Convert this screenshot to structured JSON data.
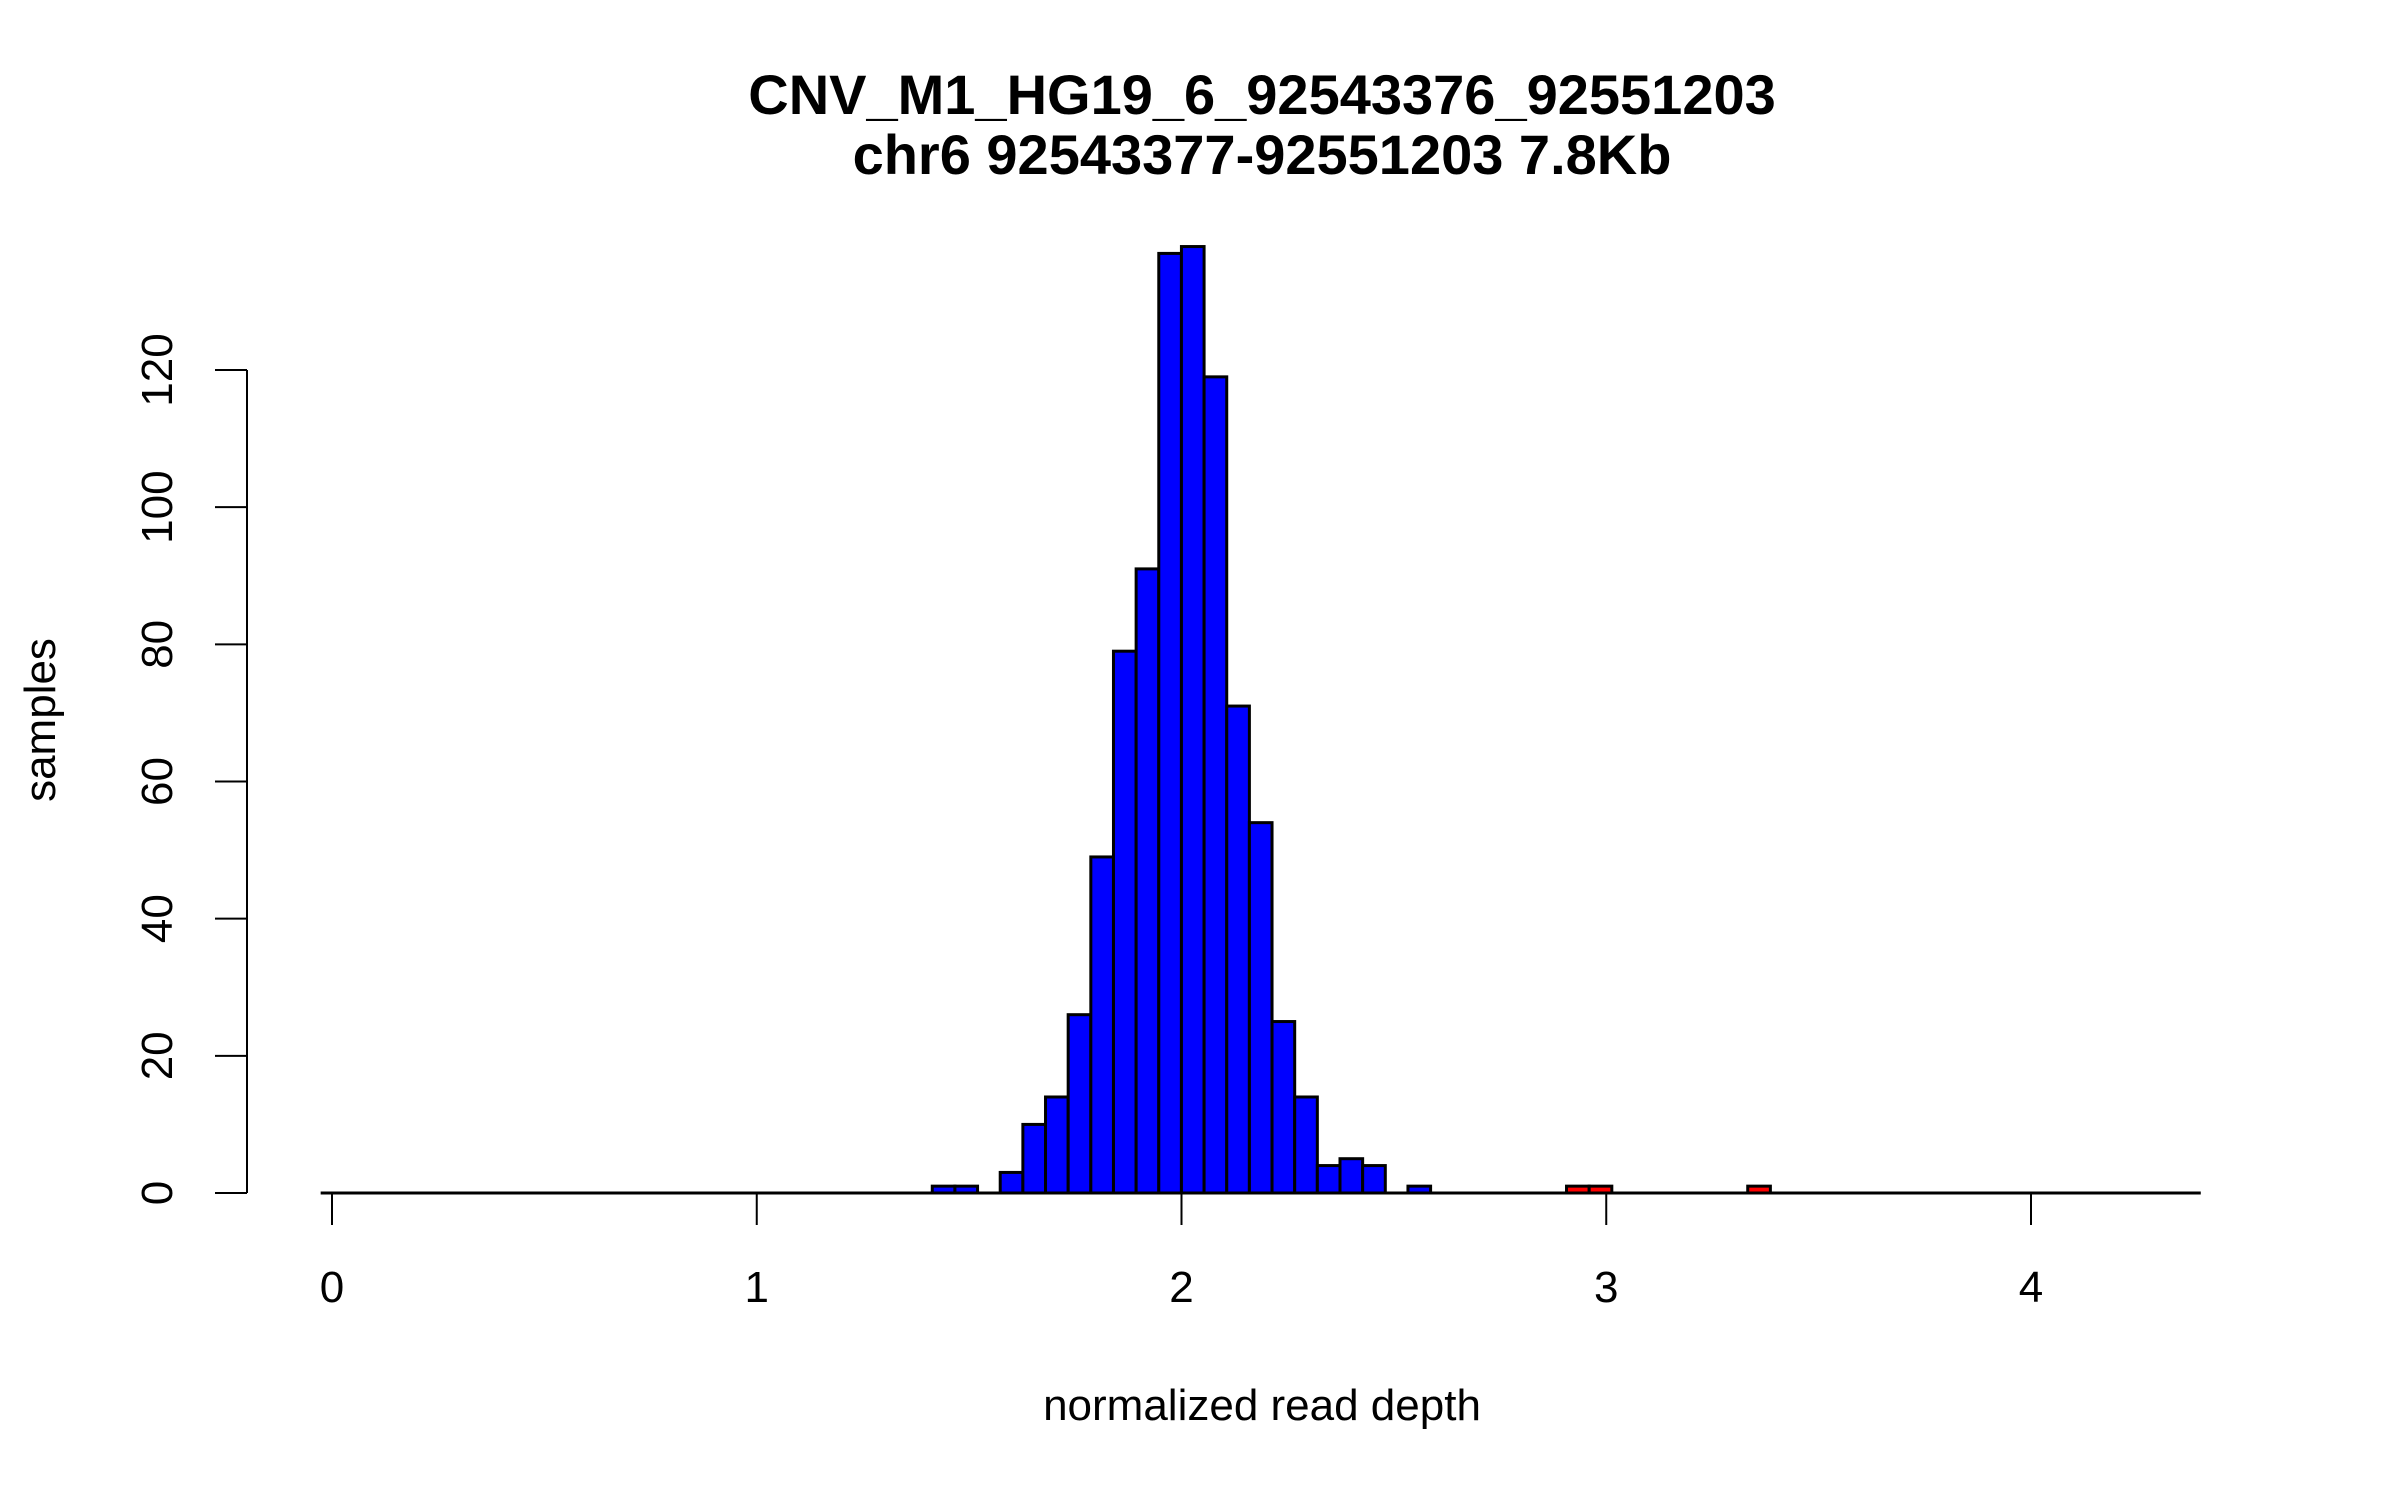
{
  "chart_data": {
    "type": "bar",
    "subtype": "histogram",
    "title": "CNV_M1_HG19_6_92543376_92551203",
    "subtitle": "chr6 92543377-92551203 7.8Kb",
    "xlabel": "normalized read depth",
    "ylabel": "samples",
    "xlim": [
      0,
      4.4
    ],
    "ylim": [
      0,
      120
    ],
    "x_ticks": [
      "0",
      "1",
      "2",
      "3",
      "4"
    ],
    "y_ticks": [
      "0",
      "20",
      "40",
      "60",
      "80",
      "100",
      "120"
    ],
    "breaks_start": -0.0267,
    "bin_width": 0.05333,
    "counts": [
      0,
      0,
      0,
      0,
      0,
      0,
      0,
      0,
      0,
      0,
      0,
      0,
      0,
      0,
      0,
      0,
      0,
      0,
      0,
      0,
      0,
      0,
      0,
      0,
      0,
      0,
      0,
      1,
      1,
      0,
      3,
      10,
      14,
      26,
      49,
      79,
      91,
      137,
      138,
      119,
      71,
      54,
      25,
      14,
      4,
      5,
      4,
      0,
      1,
      0,
      0,
      0,
      0,
      0,
      0,
      1,
      1,
      0,
      0,
      0,
      0,
      0,
      0,
      1,
      0,
      0,
      0,
      0,
      0,
      0,
      0,
      0,
      0,
      0,
      0,
      0,
      0,
      0,
      0,
      0,
      0,
      0,
      0
    ],
    "highlight_bins": [
      55,
      56,
      63
    ],
    "colors": {
      "default": "#0000ff",
      "highlight": "#ff0000",
      "outline": "#000000"
    },
    "grid": false
  }
}
